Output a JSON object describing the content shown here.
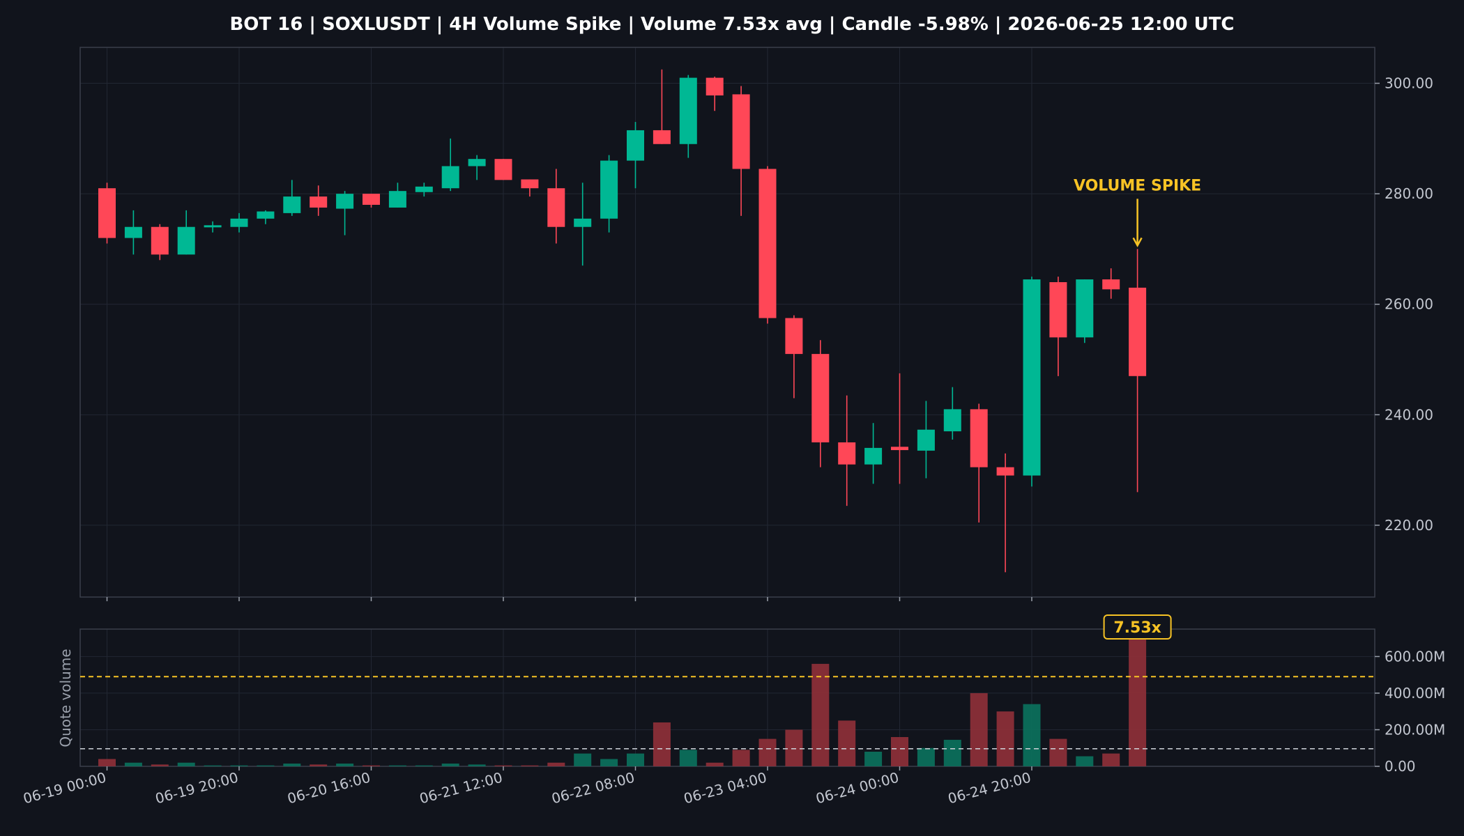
{
  "chart_data": {
    "title": "BOT 16 | SOXLUSDT | 4H Volume Spike | Volume 7.53x avg | Candle -5.98% | 2026-06-25 12:00 UTC",
    "price_panel": {
      "type": "candlestick",
      "y_ticks": [
        "220.00",
        "240.00",
        "260.00",
        "280.00",
        "300.00"
      ],
      "y_tick_values": [
        220,
        240,
        260,
        280,
        300
      ],
      "ylim": [
        207,
        306.5
      ],
      "candles": [
        {
          "o": 281,
          "h": 282,
          "l": 271,
          "c": 272
        },
        {
          "o": 272,
          "h": 277,
          "l": 269,
          "c": 274
        },
        {
          "o": 274,
          "h": 274.5,
          "l": 268,
          "c": 269
        },
        {
          "o": 269,
          "h": 277,
          "l": 269,
          "c": 274
        },
        {
          "o": 274,
          "h": 275,
          "l": 273,
          "c": 274.3
        },
        {
          "o": 274,
          "h": 276.5,
          "l": 273,
          "c": 275.5
        },
        {
          "o": 275.5,
          "h": 277,
          "l": 274.5,
          "c": 276.8
        },
        {
          "o": 276.5,
          "h": 282.5,
          "l": 276,
          "c": 279.5
        },
        {
          "o": 279.5,
          "h": 281.5,
          "l": 276,
          "c": 277.5
        },
        {
          "o": 277.3,
          "h": 280.5,
          "l": 272.5,
          "c": 280
        },
        {
          "o": 280,
          "h": 280,
          "l": 277.5,
          "c": 278
        },
        {
          "o": 277.5,
          "h": 282,
          "l": 277.5,
          "c": 280.5
        },
        {
          "o": 280.3,
          "h": 282,
          "l": 279.5,
          "c": 281.3
        },
        {
          "o": 281,
          "h": 290,
          "l": 280.5,
          "c": 285
        },
        {
          "o": 285,
          "h": 287,
          "l": 282.5,
          "c": 286.3
        },
        {
          "o": 286.3,
          "h": 286.3,
          "l": 282.5,
          "c": 282.5
        },
        {
          "o": 282.6,
          "h": 282.6,
          "l": 279.5,
          "c": 281
        },
        {
          "o": 281,
          "h": 284.5,
          "l": 271,
          "c": 274
        },
        {
          "o": 274,
          "h": 282,
          "l": 267,
          "c": 275.5
        },
        {
          "o": 275.5,
          "h": 287,
          "l": 273,
          "c": 286
        },
        {
          "o": 286,
          "h": 293,
          "l": 281,
          "c": 291.5
        },
        {
          "o": 291.5,
          "h": 302.5,
          "l": 289,
          "c": 289
        },
        {
          "o": 289,
          "h": 301.5,
          "l": 286.5,
          "c": 301
        },
        {
          "o": 301,
          "h": 301.2,
          "l": 295,
          "c": 297.8
        },
        {
          "o": 298,
          "h": 299.5,
          "l": 276,
          "c": 284.5
        },
        {
          "o": 284.5,
          "h": 285,
          "l": 256.5,
          "c": 257.5
        },
        {
          "o": 257.5,
          "h": 258,
          "l": 243,
          "c": 251
        },
        {
          "o": 251,
          "h": 253.5,
          "l": 230.5,
          "c": 235
        },
        {
          "o": 235,
          "h": 243.5,
          "l": 223.5,
          "c": 231
        },
        {
          "o": 231,
          "h": 238.5,
          "l": 227.5,
          "c": 234
        },
        {
          "o": 234.2,
          "h": 247.5,
          "l": 227.5,
          "c": 233.6
        },
        {
          "o": 233.5,
          "h": 242.5,
          "l": 228.5,
          "c": 237.3
        },
        {
          "o": 237,
          "h": 245,
          "l": 235.5,
          "c": 241
        },
        {
          "o": 241,
          "h": 242,
          "l": 220.5,
          "c": 230.5
        },
        {
          "o": 230.5,
          "h": 233,
          "l": 211.5,
          "c": 229
        },
        {
          "o": 229,
          "h": 265,
          "l": 227,
          "c": 264.5
        },
        {
          "o": 264,
          "h": 265,
          "l": 247,
          "c": 254
        },
        {
          "o": 254,
          "h": 264.5,
          "l": 253,
          "c": 264.5
        },
        {
          "o": 264.5,
          "h": 266.5,
          "l": 261,
          "c": 262.7
        },
        {
          "o": 263,
          "h": 270,
          "l": 226,
          "c": 247
        }
      ],
      "annotation": "VOLUME SPIKE"
    },
    "volume_panel": {
      "type": "bar",
      "ylabel": "Quote volume",
      "y_ticks": [
        "0.00",
        "200.00M",
        "400.00M",
        "600.00M"
      ],
      "y_tick_values": [
        0,
        200,
        400,
        600
      ],
      "ylim": [
        0,
        750
      ],
      "unit": "M",
      "values": [
        40,
        20,
        10,
        20,
        5,
        5,
        5,
        15,
        10,
        15,
        5,
        5,
        5,
        15,
        10,
        5,
        5,
        20,
        70,
        40,
        70,
        240,
        90,
        20,
        90,
        150,
        200,
        560,
        250,
        80,
        160,
        100,
        145,
        400,
        300,
        340,
        150,
        55,
        70,
        720
      ],
      "average_line": 96,
      "threshold_line": 490,
      "badge": "7.53x"
    },
    "x_ticks": [
      "06-19 00:00",
      "06-19 20:00",
      "06-20 16:00",
      "06-21 12:00",
      "06-22 08:00",
      "06-23 04:00",
      "06-24 00:00",
      "06-24 20:00"
    ],
    "x_tick_index": [
      0,
      5,
      10,
      15,
      20,
      25,
      30,
      35
    ],
    "colors": {
      "background": "#11141c",
      "up": "#00b894",
      "down": "#ff4757",
      "accent": "#f7c325",
      "grid": "#222733",
      "frame": "#3a3f4b",
      "text": "#c3c7d0"
    }
  }
}
